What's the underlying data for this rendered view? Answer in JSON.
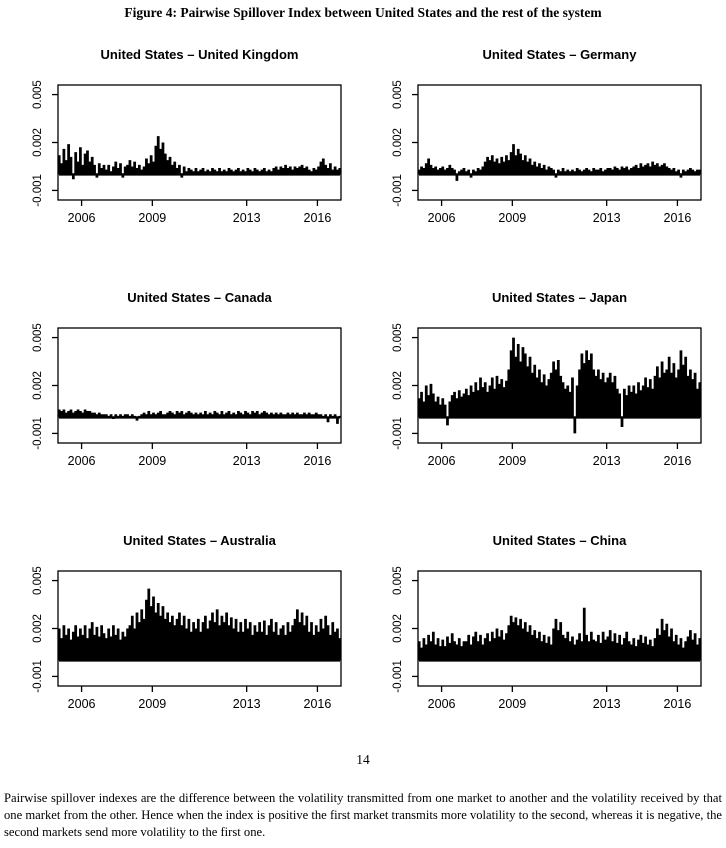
{
  "page": {
    "figure_title": "Figure 4: Pairwise Spillover Index between United States and the rest of the system",
    "page_number": "14",
    "caption": "Pairwise spillover indexes are the difference between the volatility transmitted from one market to another and the volatility received by that one market from the other. Hence when the index is positive the first market transmits more volatility to the second, whereas it is negative, the second markets send more volatility to the first one."
  },
  "style": {
    "series_color": "#000000",
    "axis_color": "#000000",
    "background": "#ffffff"
  },
  "chart_data": [
    {
      "type": "area",
      "title": "United States – United Kingdom",
      "xlabel": "",
      "ylabel": "",
      "x_range": [
        2005,
        2017
      ],
      "y_range": [
        -0.0016,
        0.0056
      ],
      "x_ticks": [
        2006,
        2009,
        2013,
        2016
      ],
      "y_ticks": [
        "-0.001",
        "0.002",
        "0.005"
      ],
      "grid": false,
      "legend": "none",
      "value_scale": 0.0001,
      "values": [
        12,
        7,
        16,
        9,
        19,
        11,
        -3,
        14,
        8,
        17,
        6,
        13,
        15,
        8,
        11,
        6,
        -2,
        7,
        4,
        6,
        3,
        6,
        2,
        5,
        8,
        4,
        7,
        -2,
        5,
        6,
        9,
        5,
        8,
        4,
        6,
        3,
        5,
        10,
        7,
        12,
        8,
        18,
        24,
        16,
        20,
        13,
        9,
        11,
        6,
        8,
        4,
        6,
        -2,
        5,
        2,
        4,
        3,
        2,
        4,
        2,
        3,
        4,
        2,
        3,
        2,
        4,
        3,
        2,
        4,
        2,
        3,
        2,
        4,
        3,
        2,
        3,
        4,
        2,
        3,
        2,
        4,
        3,
        2,
        4,
        3,
        2,
        3,
        4,
        2,
        3,
        2,
        4,
        5,
        3,
        5,
        4,
        6,
        4,
        5,
        3,
        5,
        4,
        5,
        6,
        4,
        5,
        3,
        2,
        4,
        3,
        5,
        8,
        10,
        6,
        4,
        7,
        3,
        5,
        3,
        4
      ]
    },
    {
      "type": "area",
      "title": "United States – Germany",
      "xlabel": "",
      "ylabel": "",
      "x_range": [
        2005,
        2017
      ],
      "y_range": [
        -0.0016,
        0.0056
      ],
      "x_ticks": [
        2006,
        2009,
        2013,
        2016
      ],
      "y_ticks": [
        "-0.001",
        "0.002",
        "0.005"
      ],
      "grid": false,
      "legend": "none",
      "value_scale": 0.0001,
      "values": [
        3,
        5,
        4,
        7,
        10,
        6,
        4,
        5,
        3,
        4,
        5,
        3,
        4,
        6,
        4,
        3,
        -4,
        2,
        3,
        4,
        2,
        3,
        -2,
        3,
        2,
        4,
        3,
        5,
        8,
        11,
        9,
        12,
        8,
        10,
        7,
        11,
        8,
        12,
        9,
        14,
        19,
        12,
        16,
        13,
        9,
        12,
        8,
        10,
        6,
        8,
        5,
        7,
        4,
        6,
        3,
        5,
        4,
        3,
        -2,
        3,
        2,
        4,
        2,
        3,
        2,
        3,
        2,
        4,
        3,
        2,
        3,
        4,
        3,
        2,
        4,
        3,
        3,
        4,
        2,
        3,
        4,
        4,
        3,
        5,
        4,
        3,
        5,
        4,
        5,
        3,
        4,
        5,
        6,
        4,
        7,
        5,
        6,
        7,
        5,
        8,
        6,
        7,
        5,
        6,
        7,
        5,
        4,
        3,
        4,
        2,
        3,
        -2,
        3,
        2,
        3,
        4,
        3,
        2,
        3,
        3
      ]
    },
    {
      "type": "area",
      "title": "United States – Canada",
      "xlabel": "",
      "ylabel": "",
      "x_range": [
        2005,
        2017
      ],
      "y_range": [
        -0.0016,
        0.0056
      ],
      "x_ticks": [
        2006,
        2009,
        2013,
        2016
      ],
      "y_ticks": [
        "-0.001",
        "0.002",
        "0.005"
      ],
      "grid": false,
      "legend": "none",
      "value_scale": 0.0001,
      "values": [
        5,
        4,
        5,
        3,
        4,
        5,
        3,
        4,
        5,
        4,
        3,
        5,
        4,
        4,
        3,
        3,
        2,
        3,
        2,
        2,
        2,
        1,
        2,
        -1,
        2,
        1,
        2,
        1,
        2,
        2,
        1,
        2,
        1,
        -2,
        1,
        2,
        3,
        2,
        4,
        2,
        3,
        2,
        3,
        4,
        2,
        2,
        3,
        4,
        3,
        2,
        4,
        3,
        4,
        2,
        3,
        4,
        3,
        2,
        3,
        2,
        3,
        2,
        4,
        2,
        3,
        2,
        4,
        3,
        2,
        4,
        2,
        3,
        4,
        2,
        3,
        2,
        4,
        3,
        2,
        4,
        3,
        2,
        4,
        3,
        4,
        2,
        3,
        4,
        3,
        2,
        3,
        2,
        3,
        2,
        3,
        2,
        2,
        3,
        2,
        3,
        2,
        3,
        2,
        2,
        3,
        2,
        3,
        2,
        2,
        3,
        2,
        2,
        1,
        2,
        -3,
        2,
        1,
        2,
        -4,
        1
      ]
    },
    {
      "type": "area",
      "title": "United States – Japan",
      "xlabel": "",
      "ylabel": "",
      "x_range": [
        2005,
        2017
      ],
      "y_range": [
        -0.0016,
        0.0056
      ],
      "x_ticks": [
        2006,
        2009,
        2013,
        2016
      ],
      "y_ticks": [
        "-0.001",
        "0.002",
        "0.005"
      ],
      "grid": false,
      "legend": "none",
      "value_scale": 0.0001,
      "values": [
        12,
        16,
        10,
        20,
        14,
        21,
        15,
        10,
        13,
        8,
        12,
        8,
        -5,
        10,
        14,
        16,
        12,
        17,
        13,
        15,
        18,
        14,
        20,
        16,
        22,
        17,
        25,
        19,
        22,
        16,
        20,
        25,
        18,
        26,
        21,
        24,
        19,
        23,
        30,
        42,
        50,
        38,
        46,
        35,
        44,
        40,
        32,
        38,
        28,
        33,
        25,
        30,
        22,
        27,
        20,
        24,
        28,
        35,
        30,
        36,
        26,
        22,
        18,
        20,
        16,
        25,
        -10,
        20,
        30,
        40,
        34,
        42,
        36,
        40,
        30,
        26,
        30,
        24,
        28,
        22,
        25,
        28,
        22,
        26,
        18,
        15,
        -6,
        18,
        14,
        20,
        16,
        20,
        15,
        22,
        17,
        20,
        25,
        19,
        24,
        18,
        26,
        32,
        25,
        35,
        28,
        30,
        38,
        28,
        34,
        25,
        30,
        42,
        33,
        38,
        26,
        30,
        24,
        28,
        18,
        22
      ]
    },
    {
      "type": "area",
      "title": "United States – Australia",
      "xlabel": "",
      "ylabel": "",
      "x_range": [
        2005,
        2017
      ],
      "y_range": [
        -0.0016,
        0.0056
      ],
      "x_ticks": [
        2006,
        2009,
        2013,
        2016
      ],
      "y_ticks": [
        "-0.001",
        "0.002",
        "0.005"
      ],
      "grid": false,
      "legend": "none",
      "value_scale": 0.0001,
      "values": [
        20,
        14,
        22,
        16,
        20,
        13,
        18,
        22,
        15,
        20,
        16,
        22,
        14,
        20,
        24,
        16,
        21,
        15,
        22,
        17,
        14,
        20,
        15,
        22,
        16,
        20,
        13,
        18,
        15,
        20,
        22,
        28,
        20,
        30,
        24,
        32,
        26,
        38,
        45,
        34,
        40,
        30,
        36,
        28,
        34,
        26,
        30,
        24,
        28,
        22,
        26,
        30,
        22,
        28,
        20,
        26,
        18,
        24,
        20,
        26,
        18,
        24,
        28,
        20,
        25,
        30,
        24,
        32,
        22,
        28,
        24,
        30,
        22,
        27,
        20,
        26,
        18,
        24,
        18,
        26,
        20,
        24,
        16,
        22,
        18,
        24,
        18,
        25,
        16,
        22,
        26,
        18,
        24,
        16,
        20,
        22,
        16,
        24,
        18,
        22,
        26,
        32,
        24,
        30,
        22,
        28,
        18,
        24,
        16,
        22,
        18,
        26,
        20,
        28,
        22,
        16,
        24,
        18,
        20,
        14
      ]
    },
    {
      "type": "area",
      "title": "United States – China",
      "xlabel": "",
      "ylabel": "",
      "x_range": [
        2005,
        2017
      ],
      "y_range": [
        -0.0016,
        0.0056
      ],
      "x_ticks": [
        2006,
        2009,
        2013,
        2016
      ],
      "y_ticks": [
        "-0.001",
        "0.002",
        "0.005"
      ],
      "grid": false,
      "legend": "none",
      "value_scale": 0.0001,
      "values": [
        12,
        8,
        14,
        10,
        16,
        12,
        18,
        10,
        14,
        9,
        13,
        9,
        15,
        11,
        17,
        12,
        10,
        14,
        9,
        12,
        12,
        16,
        10,
        15,
        18,
        12,
        16,
        10,
        14,
        17,
        12,
        18,
        14,
        20,
        15,
        19,
        13,
        17,
        22,
        28,
        24,
        27,
        22,
        26,
        20,
        24,
        18,
        22,
        16,
        19,
        14,
        18,
        12,
        16,
        11,
        15,
        10,
        20,
        26,
        19,
        24,
        16,
        14,
        18,
        12,
        15,
        10,
        13,
        17,
        12,
        33,
        16,
        12,
        18,
        13,
        12,
        16,
        11,
        18,
        13,
        15,
        19,
        12,
        17,
        11,
        16,
        10,
        14,
        18,
        12,
        10,
        14,
        9,
        13,
        16,
        11,
        15,
        10,
        13,
        9,
        14,
        20,
        16,
        26,
        19,
        23,
        15,
        20,
        12,
        16,
        10,
        14,
        8,
        12,
        15,
        19,
        13,
        17,
        10,
        14
      ]
    }
  ]
}
